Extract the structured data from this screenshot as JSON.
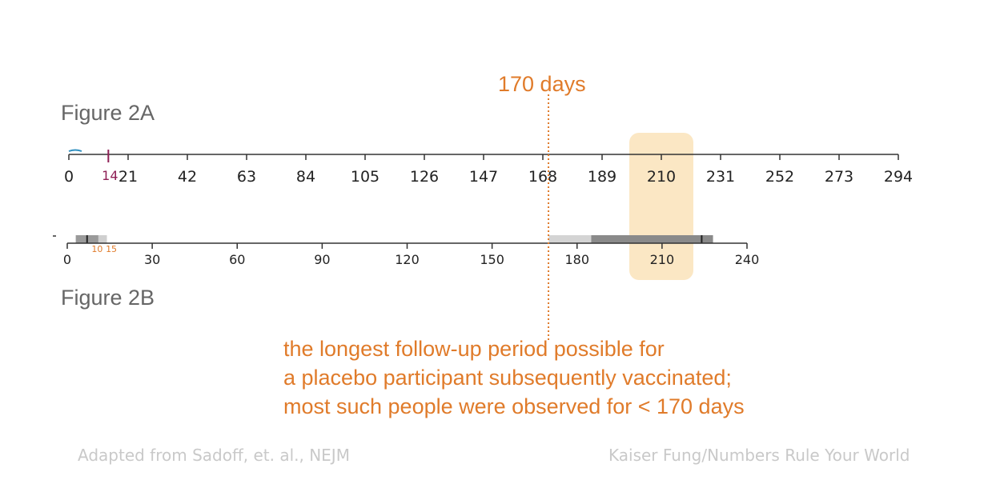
{
  "figure_a_label": "Figure 2A",
  "figure_b_label": "Figure 2B",
  "callout_label": "170 days",
  "note_lines": [
    "the longest follow-up period possible for",
    "a placebo participant subsequently vaccinated;",
    "most such people were observed for < 170 days"
  ],
  "credit_left": "Adapted from Sadoff, et. al., NEJM",
  "credit_right": "Kaiser Fung/Numbers Rule Your World",
  "colors": {
    "orange": "#e07b2a",
    "highlight": "#fbe7c4",
    "tick14": "#8e1f55",
    "axis": "#333333"
  },
  "chart_data": [
    {
      "type": "timeline-axis",
      "xlim": [
        0,
        294
      ],
      "ticks": [
        0,
        21,
        42,
        63,
        84,
        105,
        126,
        147,
        168,
        189,
        210,
        231,
        252,
        273,
        294
      ],
      "marker": {
        "value": 14,
        "label": "14"
      }
    },
    {
      "type": "timeline-axis",
      "xlim": [
        0,
        240
      ],
      "ticks": [
        0,
        30,
        60,
        90,
        120,
        150,
        180,
        210,
        240
      ],
      "small_labels": [
        {
          "value": 10,
          "label": "10"
        },
        {
          "value": 15,
          "label": "15"
        }
      ],
      "bars": [
        {
          "from": 3,
          "to": 11,
          "color": "#9a9a9a"
        },
        {
          "from": 11,
          "to": 14,
          "color": "#cfcfcf"
        },
        {
          "from": 170,
          "to": 185,
          "color": "#d4d4d4"
        },
        {
          "from": 185,
          "to": 228,
          "color": "#8a8a8a"
        }
      ]
    }
  ],
  "reference_line": {
    "value": 170
  },
  "highlight_region": {
    "center": 210
  }
}
